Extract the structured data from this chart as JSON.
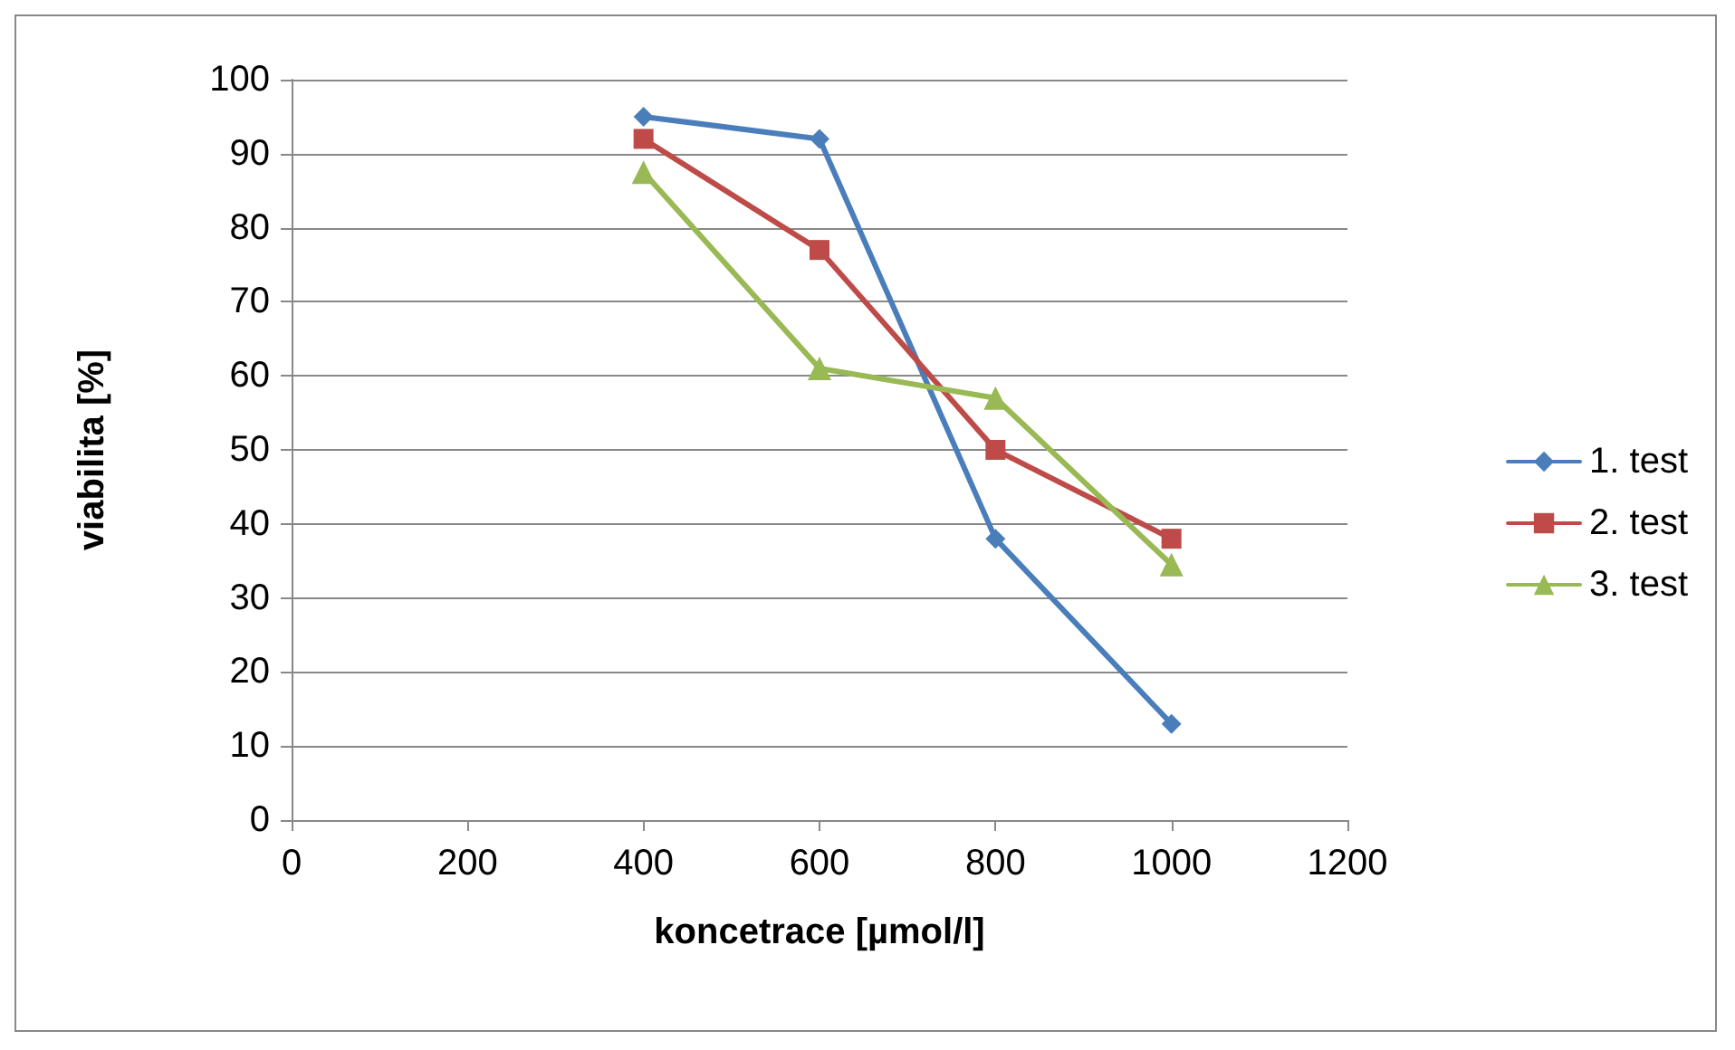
{
  "chart_data": {
    "type": "line",
    "xlabel": "koncetrace [µmol/l]",
    "ylabel": "viabilita [%]",
    "x": [
      400,
      600,
      800,
      1000
    ],
    "series": [
      {
        "name": "1. test",
        "color": "#4a7ebb",
        "marker": "diamond",
        "values": [
          95,
          92,
          38,
          13
        ]
      },
      {
        "name": "2. test",
        "color": "#be4b48",
        "marker": "square",
        "values": [
          92,
          77,
          50,
          38
        ]
      },
      {
        "name": "3. test",
        "color": "#98b954",
        "marker": "triangle",
        "values": [
          87.5,
          61,
          57,
          34.5
        ]
      }
    ],
    "xlim": [
      0,
      1200
    ],
    "xticks": [
      0,
      200,
      400,
      600,
      800,
      1000,
      1200
    ],
    "ylim": [
      0,
      100
    ],
    "yticks": [
      0,
      10,
      20,
      30,
      40,
      50,
      60,
      70,
      80,
      90,
      100
    ],
    "grid": "y",
    "legend": "right",
    "line_style": "solid"
  }
}
